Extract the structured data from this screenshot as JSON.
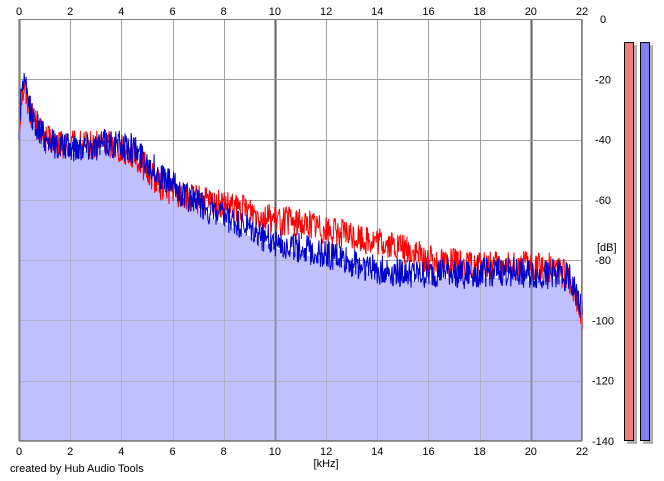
{
  "credit": "created by Hub Audio Tools",
  "chart_data": {
    "type": "line",
    "xlabel": "[kHz]",
    "ylabel": "[dB]",
    "xlim": [
      0,
      22
    ],
    "ylim": [
      -140,
      0
    ],
    "xticks": [
      0,
      2,
      4,
      6,
      8,
      10,
      12,
      14,
      16,
      18,
      20,
      22
    ],
    "yticks": [
      0,
      -20,
      -40,
      -60,
      -80,
      -100,
      -120,
      -140
    ],
    "grid": true,
    "fill_color": "#c0c0ff",
    "series": [
      {
        "color": "#ff0000",
        "x": [
          0,
          0.1,
          0.2,
          0.3,
          0.5,
          0.8,
          1.0,
          1.5,
          2.0,
          2.5,
          3.0,
          3.5,
          4.0,
          4.5,
          5.0,
          5.5,
          6.0,
          6.5,
          7.0,
          7.5,
          8.0,
          8.5,
          9.0,
          9.5,
          10.0,
          10.5,
          11.0,
          11.5,
          12.0,
          12.5,
          13.0,
          13.5,
          14.0,
          14.5,
          15.0,
          15.5,
          16.0,
          16.5,
          17.0,
          17.5,
          18.0,
          18.5,
          19.0,
          19.5,
          20.0,
          20.5,
          21.0,
          21.5,
          22.0
        ],
        "y": [
          -38,
          -25,
          -23,
          -26,
          -32,
          -36,
          -40,
          -41,
          -42,
          -42,
          -42,
          -41,
          -43,
          -45,
          -50,
          -55,
          -57,
          -59,
          -60,
          -61,
          -62,
          -63,
          -63,
          -65,
          -67,
          -67,
          -68,
          -68,
          -70,
          -71,
          -72,
          -73,
          -74,
          -75,
          -76,
          -78,
          -80,
          -80,
          -81,
          -82,
          -82,
          -82,
          -82,
          -82,
          -82,
          -82,
          -83,
          -86,
          -98
        ]
      },
      {
        "color": "#0000cc",
        "x": [
          0,
          0.1,
          0.2,
          0.3,
          0.5,
          0.8,
          1.0,
          1.5,
          2.0,
          2.5,
          3.0,
          3.5,
          4.0,
          4.5,
          5.0,
          5.5,
          6.0,
          6.5,
          7.0,
          7.5,
          8.0,
          8.5,
          9.0,
          9.5,
          10.0,
          10.5,
          11.0,
          11.5,
          12.0,
          12.5,
          13.0,
          13.5,
          14.0,
          14.5,
          15.0,
          15.5,
          16.0,
          16.5,
          17.0,
          17.5,
          18.0,
          18.5,
          19.0,
          19.5,
          20.0,
          20.5,
          21.0,
          21.5,
          22.0
        ],
        "y": [
          -39,
          -22,
          -21,
          -25,
          -32,
          -37,
          -39,
          -42,
          -43,
          -42,
          -42,
          -41,
          -42,
          -43,
          -47,
          -52,
          -55,
          -59,
          -61,
          -64,
          -66,
          -68,
          -70,
          -72,
          -74,
          -75,
          -76,
          -77,
          -78,
          -79,
          -81,
          -82,
          -83,
          -84,
          -84,
          -85,
          -85,
          -84,
          -84,
          -85,
          -84,
          -84,
          -84,
          -84,
          -85,
          -85,
          -84,
          -86,
          -96
        ]
      }
    ],
    "level_meters": [
      {
        "color": "#f08080",
        "level_db": -5
      },
      {
        "color": "#8080f0",
        "level_db": -5
      }
    ]
  }
}
